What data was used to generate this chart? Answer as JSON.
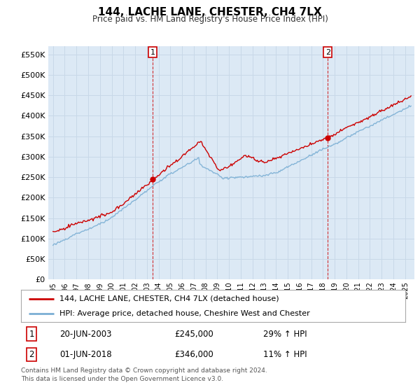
{
  "title": "144, LACHE LANE, CHESTER, CH4 7LX",
  "subtitle": "Price paid vs. HM Land Registry's House Price Index (HPI)",
  "background_color": "#ffffff",
  "grid_color": "#c8d8e8",
  "plot_bg_color": "#dce9f5",
  "red_line_color": "#cc0000",
  "blue_line_color": "#7bafd4",
  "ylim": [
    0,
    570000
  ],
  "yticks": [
    0,
    50000,
    100000,
    150000,
    200000,
    250000,
    300000,
    350000,
    400000,
    450000,
    500000,
    550000
  ],
  "sale1_year": 2003.47,
  "sale1_price": 245000,
  "sale2_year": 2018.42,
  "sale2_price": 346000,
  "legend_entry1": "144, LACHE LANE, CHESTER, CH4 7LX (detached house)",
  "legend_entry2": "HPI: Average price, detached house, Cheshire West and Chester",
  "annotation1_date": "20-JUN-2003",
  "annotation1_price": "£245,000",
  "annotation1_hpi": "29% ↑ HPI",
  "annotation2_date": "01-JUN-2018",
  "annotation2_price": "£346,000",
  "annotation2_hpi": "11% ↑ HPI",
  "footer": "Contains HM Land Registry data © Crown copyright and database right 2024.\nThis data is licensed under the Open Government Licence v3.0.",
  "xstart": 1995,
  "xend": 2025
}
